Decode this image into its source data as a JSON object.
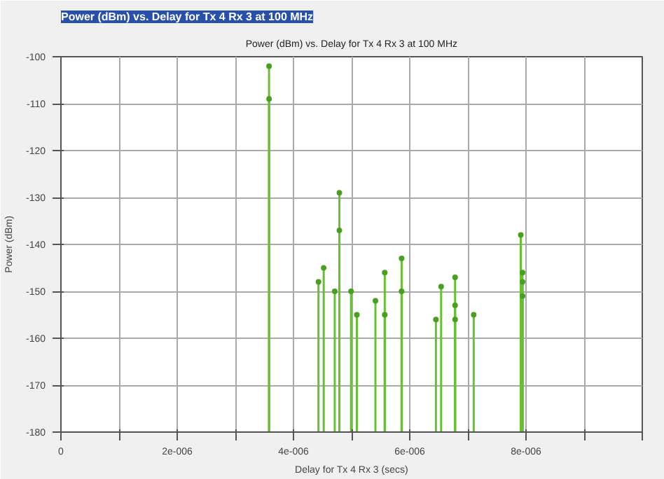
{
  "chart_data": {
    "type": "scatter",
    "title": "Power (dBm) vs. Delay for Tx 4 Rx 3 at 100 MHz",
    "annotations": [
      "Power (dBm) vs. Delay for Tx 4 Rx 3 at 100 MHz"
    ],
    "xlabel": "Delay for Tx 4 Rx 3 (secs)",
    "ylabel": "Power (dBm)",
    "series": [
      {
        "color": "#4a9f22",
        "x": [
          3.58e-06,
          3.58e-06,
          4.43e-06,
          4.52e-06,
          4.71e-06,
          4.79e-06,
          4.79e-06,
          4.99e-06,
          5.09e-06,
          5.41e-06,
          5.57e-06,
          5.57e-06,
          5.86e-06,
          5.86e-06,
          6.45e-06,
          6.54e-06,
          6.78e-06,
          6.78e-06,
          6.78e-06,
          7.1e-06,
          7.91e-06,
          7.94e-06,
          7.94e-06,
          7.94e-06
        ],
        "values": [
          -102,
          -109,
          -148,
          -145,
          -150,
          -129,
          -137,
          -150,
          -155,
          -152,
          -146,
          -155,
          -143,
          -150,
          -156,
          -149,
          -147,
          -153,
          -156,
          -155,
          -138,
          -146,
          -148,
          -151
        ],
        "errors": [
          [
            -180,
            -102
          ],
          [
            -180,
            -109
          ],
          [
            -180,
            -148
          ],
          [
            -180,
            -145
          ],
          [
            -180,
            -150
          ],
          [
            -180,
            -129
          ],
          [
            -180,
            -137
          ],
          [
            -180,
            -150
          ],
          [
            -180,
            -155
          ],
          [
            -180,
            -152
          ],
          [
            -180,
            -146
          ],
          [
            -180,
            -155
          ],
          [
            -180,
            -143
          ],
          [
            -180,
            -150
          ],
          [
            -180,
            -156
          ],
          [
            -180,
            -149
          ],
          [
            -180,
            -147
          ],
          [
            -180,
            -153
          ],
          [
            -180,
            -156
          ],
          [
            -180,
            -155
          ],
          [
            -180,
            -138
          ],
          [
            -180,
            -146
          ],
          [
            -180,
            -148
          ],
          [
            -180,
            -151
          ]
        ]
      }
    ],
    "xlim": [
      0,
      1e-05
    ],
    "xticks": [
      0,
      {
        "value": 1e-06,
        "label": null
      },
      {
        "value": 2e-06,
        "label": "2e-006"
      },
      {
        "value": 3e-06,
        "label": null
      },
      {
        "value": 4e-06,
        "label": "4e-006"
      },
      {
        "value": 5e-06,
        "label": null
      },
      {
        "value": 6e-06,
        "label": "6e-006"
      },
      {
        "value": 7e-06,
        "label": null
      },
      {
        "value": 8e-06,
        "label": "8e-006"
      },
      {
        "value": 9e-06,
        "label": null
      },
      {
        "value": 1e-05,
        "label": null
      }
    ],
    "ylim": [
      -180,
      -100
    ],
    "yticks": [
      -180,
      -170,
      -160,
      -150,
      -140,
      -130,
      -120,
      -110,
      -100
    ],
    "grid": true,
    "marker": "circle"
  }
}
